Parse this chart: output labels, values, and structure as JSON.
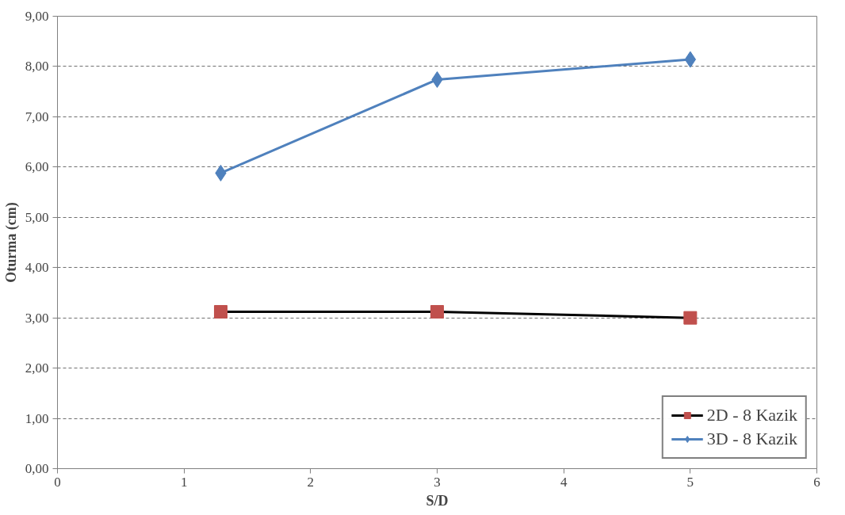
{
  "chart_data": {
    "type": "line",
    "xlabel": "S/D",
    "ylabel": "Oturma (cm)",
    "xlim": [
      0,
      6
    ],
    "xticks": [
      0,
      1,
      2,
      3,
      4,
      5,
      6
    ],
    "ylim": [
      0,
      9
    ],
    "yticks": [
      {
        "value": 0,
        "label": "0,00"
      },
      {
        "value": 1,
        "label": "1,00"
      },
      {
        "value": 2,
        "label": "2,00"
      },
      {
        "value": 3,
        "label": "3,00"
      },
      {
        "value": 4,
        "label": "4,00"
      },
      {
        "value": 5,
        "label": "5,00"
      },
      {
        "value": 6,
        "label": "6,00"
      },
      {
        "value": 7,
        "label": "7,00"
      },
      {
        "value": 8,
        "label": "8,00"
      },
      {
        "value": 9,
        "label": "9,00"
      }
    ],
    "grid": "y",
    "legend": "bottom right",
    "series": [
      {
        "name": "2D - 8 Kazik",
        "color": "#000000",
        "colors": [
          "#c0504d",
          "#c0504d",
          "#c0504d"
        ],
        "marker": "square",
        "x": [
          1.29,
          3,
          5
        ],
        "values": [
          3.12,
          3.12,
          3.0
        ]
      },
      {
        "name": "3D - 8 Kazik",
        "color": "#4f81bd",
        "marker": "diamond",
        "x": [
          1.29,
          3,
          5
        ],
        "values": [
          5.88,
          7.74,
          8.14
        ]
      }
    ]
  }
}
